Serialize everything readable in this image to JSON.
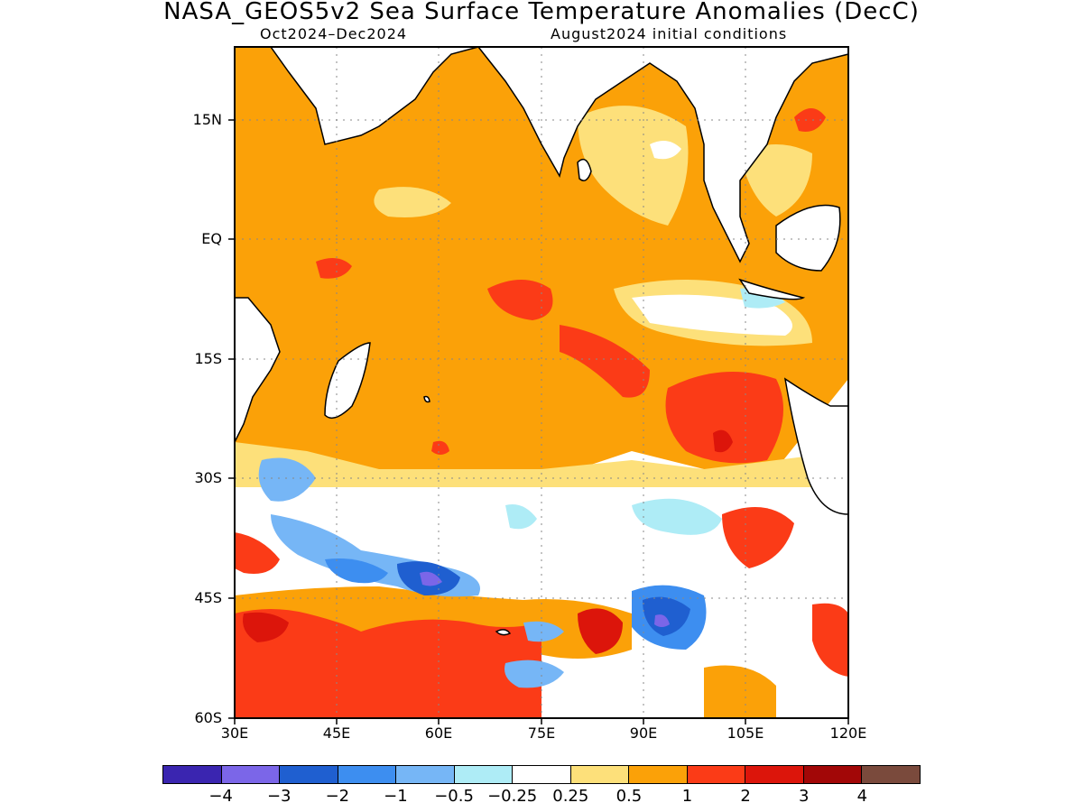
{
  "title": "NASA_GEOS5v2 Sea Surface Temperature Anomalies (DecC)",
  "subtitle_left": "Oct2024–Dec2024",
  "subtitle_right": "August2024 initial conditions",
  "lat_labels": [
    "15N",
    "EQ",
    "15S",
    "30S",
    "45S",
    "60S"
  ],
  "lon_labels": [
    "30E",
    "45E",
    "60E",
    "75E",
    "90E",
    "105E",
    "120E"
  ],
  "colorbar": {
    "colors": [
      "#3a25b0",
      "#7b66e8",
      "#1f5fd0",
      "#3d8ef0",
      "#76b6f6",
      "#aeecf6",
      "#ffffff",
      "#fde07a",
      "#fba108",
      "#fb3b17",
      "#dc150b",
      "#a20707",
      "#7a4a3c"
    ],
    "labels": [
      "−4",
      "−3",
      "−2",
      "−1",
      "−0.5",
      "−0.25",
      "0.25",
      "0.5",
      "1",
      "2",
      "3",
      "4"
    ]
  }
}
